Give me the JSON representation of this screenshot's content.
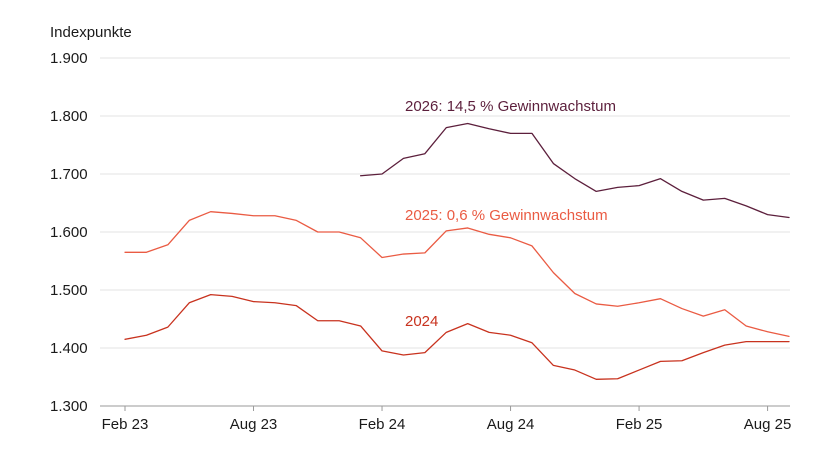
{
  "chart_data": {
    "type": "line",
    "ylabel": "Indexpunkte",
    "ylim": [
      1300,
      1900
    ],
    "yticks": [
      1300,
      1400,
      1500,
      1600,
      1700,
      1800,
      1900
    ],
    "ytick_labels": [
      "1.300",
      "1.400",
      "1.500",
      "1.600",
      "1.700",
      "1.800",
      "1.900"
    ],
    "x": [
      "2023-02",
      "2023-03",
      "2023-04",
      "2023-05",
      "2023-06",
      "2023-07",
      "2023-08",
      "2023-09",
      "2023-10",
      "2023-11",
      "2023-12",
      "2024-01",
      "2024-02",
      "2024-03",
      "2024-04",
      "2024-05",
      "2024-06",
      "2024-07",
      "2024-08",
      "2024-09",
      "2024-10",
      "2024-11",
      "2024-12",
      "2025-01",
      "2025-02",
      "2025-03",
      "2025-04",
      "2025-05",
      "2025-06",
      "2025-07",
      "2025-08",
      "2025-09"
    ],
    "xticks": [
      "2023-02",
      "2023-08",
      "2024-02",
      "2024-08",
      "2025-02",
      "2025-08"
    ],
    "xtick_labels": [
      "Feb 23",
      "Aug 23",
      "Feb 24",
      "Aug 24",
      "Feb 25",
      "Aug 25"
    ],
    "grid": "horizontal",
    "series": [
      {
        "name": "2026: 14,5 % Gewinnwachstum",
        "color": "#5c1f3c",
        "values": [
          null,
          null,
          null,
          null,
          null,
          null,
          null,
          null,
          null,
          null,
          null,
          1697,
          1700,
          1727,
          1735,
          1780,
          1787,
          1778,
          1770,
          1770,
          1718,
          1692,
          1670,
          1677,
          1680,
          1692,
          1670,
          1655,
          1658,
          1645,
          1630,
          1625
        ]
      },
      {
        "name": "2025: 0,6 % Gewinnwachstum",
        "color": "#ea5b43",
        "values": [
          1565,
          1565,
          1578,
          1620,
          1635,
          1632,
          1628,
          1628,
          1620,
          1600,
          1600,
          1590,
          1556,
          1562,
          1564,
          1602,
          1607,
          1596,
          1590,
          1576,
          1530,
          1494,
          1476,
          1472,
          1478,
          1485,
          1468,
          1455,
          1466,
          1438,
          1428,
          1420
        ]
      },
      {
        "name": "2024",
        "color": "#c8321e",
        "values": [
          1415,
          1422,
          1436,
          1478,
          1492,
          1489,
          1480,
          1478,
          1473,
          1447,
          1447,
          1438,
          1395,
          1388,
          1392,
          1427,
          1442,
          1427,
          1422,
          1409,
          1370,
          1362,
          1346,
          1347,
          1362,
          1377,
          1378,
          1392,
          1405,
          1411,
          1411,
          1411
        ]
      }
    ]
  }
}
